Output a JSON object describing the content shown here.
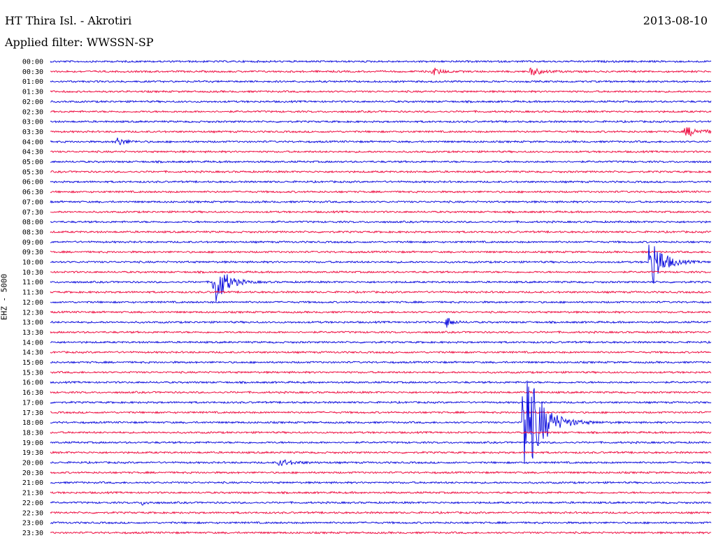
{
  "header": {
    "station": "HT Thira Isl. - Akrotiri",
    "date": "2013-08-10",
    "filter": "Applied filter: WWSSN-SP"
  },
  "chart_data": {
    "type": "line",
    "title": "HT Thira Isl. - Akrotiri",
    "ylabel": "EHZ - 5000",
    "row_labels": [
      "00:00",
      "00:30",
      "01:00",
      "01:30",
      "02:00",
      "02:30",
      "03:00",
      "03:30",
      "04:00",
      "04:30",
      "05:00",
      "05:30",
      "06:00",
      "06:30",
      "07:00",
      "07:30",
      "08:00",
      "08:30",
      "09:00",
      "09:30",
      "10:00",
      "10:30",
      "11:00",
      "11:30",
      "12:00",
      "12:30",
      "13:00",
      "13:30",
      "14:00",
      "14:30",
      "15:00",
      "15:30",
      "16:00",
      "16:30",
      "17:00",
      "17:30",
      "18:00",
      "18:30",
      "19:00",
      "19:30",
      "20:00",
      "20:30",
      "21:00",
      "21:30",
      "22:00",
      "22:30",
      "23:00",
      "23:30"
    ],
    "colors": [
      "#1010dd",
      "#ee1144"
    ],
    "events": [
      {
        "row": 1,
        "x": 0.58,
        "amp": 5,
        "width": 0.012
      },
      {
        "row": 1,
        "x": 0.73,
        "amp": 5,
        "width": 0.015
      },
      {
        "row": 7,
        "x": 0.965,
        "amp": 6,
        "width": 0.02
      },
      {
        "row": 8,
        "x": 0.1,
        "amp": 6,
        "width": 0.012
      },
      {
        "row": 20,
        "x": 0.91,
        "amp": 38,
        "width": 0.016
      },
      {
        "row": 22,
        "x": 0.25,
        "amp": 34,
        "width": 0.015
      },
      {
        "row": 26,
        "x": 0.6,
        "amp": 8,
        "width": 0.008
      },
      {
        "row": 36,
        "x": 0.72,
        "amp": 85,
        "width": 0.022
      },
      {
        "row": 40,
        "x": 0.35,
        "amp": 4,
        "width": 0.02
      },
      {
        "row": 44,
        "x": 0.14,
        "amp": 3,
        "width": 0.008
      }
    ]
  }
}
